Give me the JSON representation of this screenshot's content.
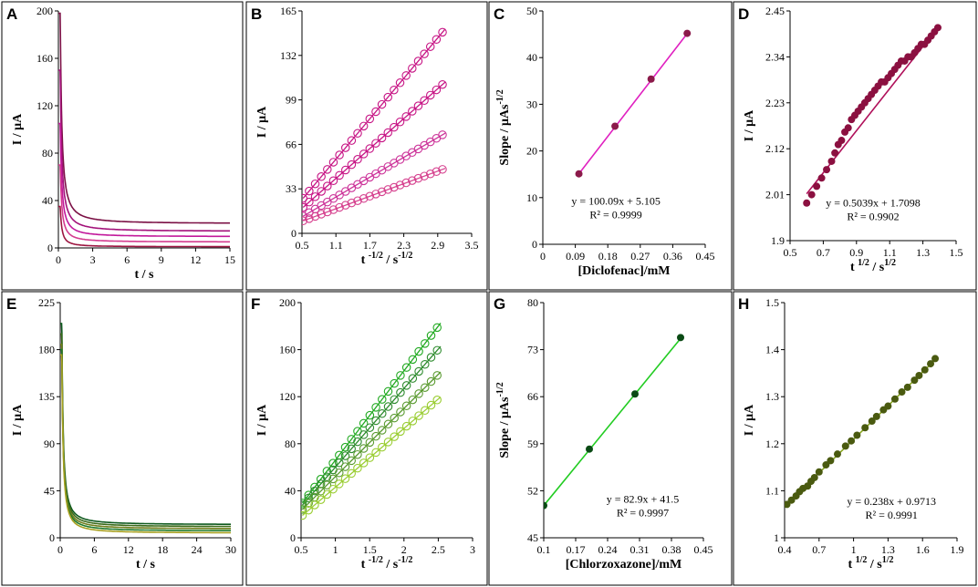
{
  "chart_data": [
    {
      "id": "A",
      "type": "line",
      "panel_label": "A",
      "xlabel": "t / s",
      "ylabel": "I / μA",
      "xlim": [
        0,
        15
      ],
      "ylim": [
        0,
        200
      ],
      "xticks": [
        "0",
        "3",
        "6",
        "9",
        "12",
        "15"
      ],
      "yticks": [
        "0",
        "40",
        "80",
        "120",
        "160",
        "200"
      ],
      "series": [
        {
          "name": "c1",
          "color": "#7b1045",
          "peak": 198,
          "plateau": 20.5,
          "k": 1.0
        },
        {
          "name": "c2",
          "color": "#a3127a",
          "peak": 150,
          "plateau": 14,
          "k": 1.0
        },
        {
          "name": "c3",
          "color": "#c2189b",
          "peak": 105,
          "plateau": 9.5,
          "k": 1.0
        },
        {
          "name": "c4",
          "color": "#d43c8f",
          "peak": 70,
          "plateau": 5,
          "k": 1.0
        },
        {
          "name": "c5",
          "color": "#9c1540",
          "peak": 35,
          "plateau": 1,
          "k": 1.0
        }
      ]
    },
    {
      "id": "B",
      "type": "scatter",
      "panel_label": "B",
      "xlabel": "t -1/2 / s-1/2",
      "ylabel": "I / μA",
      "xlim": [
        0.5,
        3.5
      ],
      "ylim": [
        0,
        165
      ],
      "xticks": [
        "0.5",
        "1.1",
        "1.7",
        "2.3",
        "2.9",
        "3.5"
      ],
      "yticks": [
        "0",
        "33",
        "66",
        "99",
        "132",
        "165"
      ],
      "marker": "open-circle",
      "series": [
        {
          "name": "b1",
          "color": "#c71585",
          "slope": 50.0,
          "intercept": 0.0
        },
        {
          "name": "b2",
          "color": "#c71585",
          "slope": 37.0,
          "intercept": 0.0
        },
        {
          "name": "b3",
          "color": "#cc3399",
          "slope": 24.5,
          "intercept": 0.0
        },
        {
          "name": "b4",
          "color": "#d6428f",
          "slope": 15.5,
          "intercept": 1.2
        }
      ]
    },
    {
      "id": "C",
      "type": "scatter",
      "panel_label": "C",
      "xlabel": "[Diclofenac]/mM",
      "ylabel": "Slope / μAs-1/2",
      "xlim": [
        0,
        0.45
      ],
      "ylim": [
        0,
        50
      ],
      "xticks": [
        "0",
        "0.09",
        "0.18",
        "0.27",
        "0.36",
        "0.45"
      ],
      "yticks": [
        "0",
        "10",
        "20",
        "30",
        "40",
        "50"
      ],
      "points": {
        "x": [
          0.1,
          0.2,
          0.3,
          0.4
        ],
        "y": [
          15.1,
          25.3,
          35.4,
          45.2
        ]
      },
      "fit": {
        "slope": 100.09,
        "intercept": 5.105
      },
      "equation": "y = 100.09x + 5.105",
      "r2": "R² = 0.9999",
      "color": "#e020c0",
      "marker_color": "#8b1a4a"
    },
    {
      "id": "D",
      "type": "scatter",
      "panel_label": "D",
      "xlabel": "t 1/2 / s1/2",
      "ylabel": "I / μA",
      "xlim": [
        0.5,
        1.5
      ],
      "ylim": [
        1.9,
        2.45
      ],
      "xticks": [
        "0.5",
        "0.7",
        "0.9",
        "1.1",
        "1.3",
        "1.5"
      ],
      "yticks": [
        "1.9",
        "2.01",
        "2.12",
        "2.23",
        "2.34",
        "2.45"
      ],
      "points": {
        "x": [
          0.6,
          0.63,
          0.66,
          0.69,
          0.72,
          0.75,
          0.77,
          0.79,
          0.81,
          0.83,
          0.85,
          0.87,
          0.89,
          0.91,
          0.93,
          0.95,
          0.97,
          0.99,
          1.01,
          1.03,
          1.05,
          1.07,
          1.09,
          1.11,
          1.13,
          1.15,
          1.17,
          1.19,
          1.21,
          1.23,
          1.25,
          1.27,
          1.29,
          1.31,
          1.33,
          1.35,
          1.37,
          1.39
        ],
        "y": [
          1.99,
          2.01,
          2.03,
          2.05,
          2.07,
          2.09,
          2.11,
          2.13,
          2.14,
          2.16,
          2.17,
          2.19,
          2.2,
          2.21,
          2.22,
          2.23,
          2.24,
          2.25,
          2.26,
          2.27,
          2.28,
          2.28,
          2.29,
          2.3,
          2.31,
          2.32,
          2.33,
          2.33,
          2.34,
          2.34,
          2.35,
          2.36,
          2.37,
          2.37,
          2.38,
          2.39,
          2.4,
          2.41
        ]
      },
      "fit": {
        "slope": 0.5039,
        "intercept": 1.7098
      },
      "equation": "y = 0.5039x + 1.7098",
      "r2": "R² = 0.9902",
      "color": "#b0105a",
      "marker_color": "#8b1040"
    },
    {
      "id": "E",
      "type": "line",
      "panel_label": "E",
      "xlabel": "t / s",
      "ylabel": "I / μA",
      "xlim": [
        0,
        30
      ],
      "ylim": [
        0,
        225
      ],
      "xticks": [
        "0",
        "6",
        "12",
        "18",
        "24",
        "30"
      ],
      "yticks": [
        "0",
        "45",
        "90",
        "135",
        "180",
        "225"
      ],
      "series": [
        {
          "name": "e1",
          "color": "#0f5a1e",
          "peak": 205,
          "plateau": 12.5,
          "k": 2.0
        },
        {
          "name": "e2",
          "color": "#3a6b1a",
          "peak": 195,
          "plateau": 10.5,
          "k": 2.0
        },
        {
          "name": "e3",
          "color": "#6e7d1a",
          "peak": 185,
          "plateau": 8.5,
          "k": 2.0
        },
        {
          "name": "e4",
          "color": "#1f7a2a",
          "peak": 180,
          "plateau": 6.5,
          "k": 2.0
        },
        {
          "name": "e5",
          "color": "#a8a020",
          "peak": 175,
          "plateau": 4.5,
          "k": 2.0
        }
      ]
    },
    {
      "id": "F",
      "type": "scatter",
      "panel_label": "F",
      "xlabel": "t -1/2 / s-1/2",
      "ylabel": "I / μA",
      "xlim": [
        0.5,
        3
      ],
      "ylim": [
        0,
        200
      ],
      "xticks": [
        "0.5",
        "1",
        "1.5",
        "2",
        "2.5",
        "3"
      ],
      "yticks": [
        "0",
        "40",
        "80",
        "120",
        "160",
        "200"
      ],
      "marker": "open-circle",
      "series": [
        {
          "name": "f1",
          "color": "#22aa22",
          "slope": 76,
          "intercept": -10
        },
        {
          "name": "f2",
          "color": "#2e8b2e",
          "slope": 67,
          "intercept": -7
        },
        {
          "name": "f3",
          "color": "#5a9a30",
          "slope": 58,
          "intercept": -6
        },
        {
          "name": "f4",
          "color": "#9acd32",
          "slope": 50,
          "intercept": -7
        }
      ]
    },
    {
      "id": "G",
      "type": "scatter",
      "panel_label": "G",
      "xlabel": "[Chlorzoxazone]/mM",
      "ylabel": "Slope / μAs-1/2",
      "xlim": [
        0.1,
        0.45
      ],
      "ylim": [
        45,
        80
      ],
      "xticks": [
        "0.1",
        "0.17",
        "0.24",
        "0.31",
        "0.38",
        "0.45"
      ],
      "yticks": [
        "45",
        "52",
        "59",
        "66",
        "73",
        "80"
      ],
      "points": {
        "x": [
          0.1,
          0.2,
          0.3,
          0.4
        ],
        "y": [
          49.8,
          58.2,
          66.4,
          74.8
        ]
      },
      "fit": {
        "slope": 82.9,
        "intercept": 41.5
      },
      "equation": "y = 82.9x + 41.5",
      "r2": "R² = 0.9997",
      "color": "#22cc22",
      "marker_color": "#0a4a14"
    },
    {
      "id": "H",
      "type": "scatter",
      "panel_label": "H",
      "xlabel": "t 1/2 / s1/2",
      "ylabel": "I / μA",
      "xlim": [
        0.4,
        1.9
      ],
      "ylim": [
        1.0,
        1.5
      ],
      "xticks": [
        "0.4",
        "0.7",
        "1",
        "1.3",
        "1.6",
        "1.9"
      ],
      "yticks": [
        "1",
        "1.1",
        "1.2",
        "1.3",
        "1.4",
        "1.5"
      ],
      "points": {
        "x": [
          0.42,
          0.46,
          0.5,
          0.53,
          0.56,
          0.6,
          0.63,
          0.66,
          0.7,
          0.76,
          0.8,
          0.86,
          0.93,
          0.98,
          1.03,
          1.1,
          1.16,
          1.2,
          1.26,
          1.3,
          1.36,
          1.42,
          1.47,
          1.53,
          1.57,
          1.62,
          1.67,
          1.71
        ],
        "y": [
          1.071,
          1.08,
          1.089,
          1.098,
          1.105,
          1.11,
          1.12,
          1.128,
          1.14,
          1.155,
          1.164,
          1.178,
          1.195,
          1.206,
          1.218,
          1.234,
          1.248,
          1.258,
          1.272,
          1.28,
          1.295,
          1.31,
          1.32,
          1.335,
          1.345,
          1.357,
          1.37,
          1.381
        ]
      },
      "fit": {
        "slope": 0.238,
        "intercept": 0.9713
      },
      "equation": "y = 0.238x + 0.9713",
      "r2": "R² = 0.9991",
      "color": "#8aa820",
      "marker_color": "#4a5a10"
    }
  ]
}
